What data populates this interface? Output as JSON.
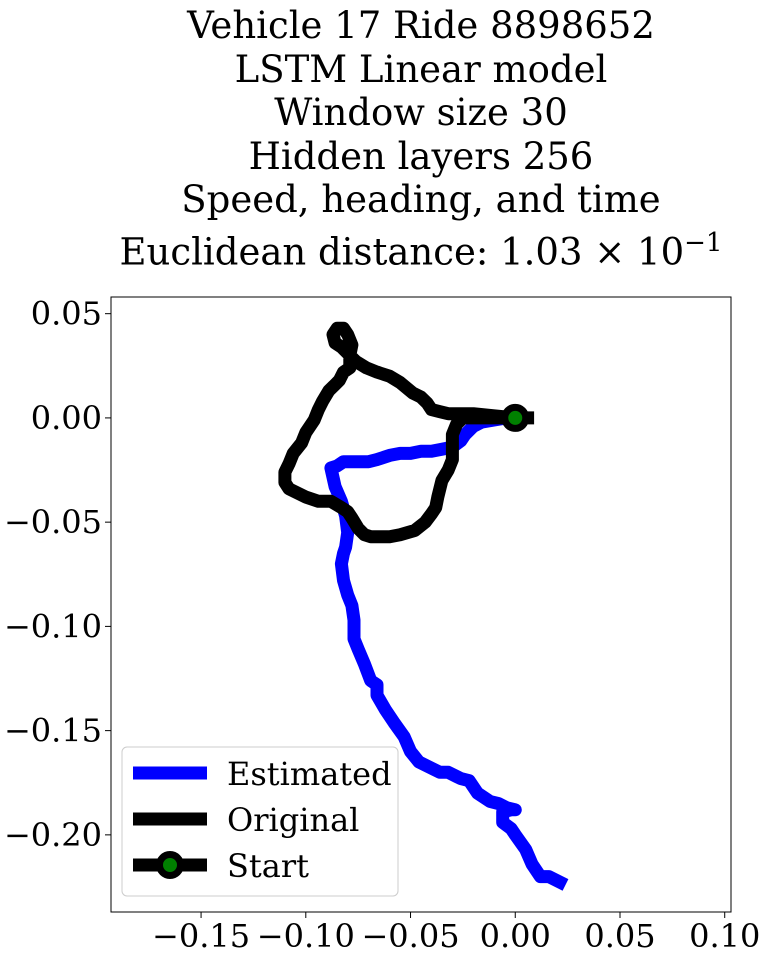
{
  "title_lines": [
    "Vehicle 17 Ride 8898652",
    "LSTM Linear model",
    "Window size 30",
    "Hidden layers 256",
    "Speed, heading, and time"
  ],
  "title_metric_prefix": "Euclidean distance: ",
  "title_metric_mantissa": "1.03",
  "title_metric_base": "10",
  "title_metric_exponent": "−1",
  "chart_data": {
    "type": "line",
    "xlim": [
      -0.193,
      0.103
    ],
    "ylim": [
      -0.237,
      0.058
    ],
    "x_ticks": [
      -0.15,
      -0.1,
      -0.05,
      0.0,
      0.05,
      0.1
    ],
    "x_tick_labels": [
      "−0.15",
      "−0.10",
      "−0.05",
      "0.00",
      "0.05",
      "0.10"
    ],
    "y_ticks": [
      0.05,
      0.0,
      -0.05,
      -0.1,
      -0.15,
      -0.2
    ],
    "y_tick_labels": [
      "0.05",
      "0.00",
      "−0.05",
      "−0.10",
      "−0.15",
      "−0.20"
    ],
    "grid": false,
    "legend_position": "lower-left",
    "series": [
      {
        "name": "Estimated",
        "color": "#0000ff",
        "x": [
          0.024,
          0.016,
          0.012,
          0.008,
          0.005,
          0.0,
          -0.002,
          -0.006,
          -0.006,
          -0.002,
          0.0,
          -0.004,
          -0.008,
          -0.012,
          -0.018,
          -0.022,
          -0.026,
          -0.028,
          -0.032,
          -0.036,
          -0.04,
          -0.046,
          -0.05,
          -0.053,
          -0.058,
          -0.062,
          -0.066,
          -0.066,
          -0.069,
          -0.072,
          -0.075,
          -0.077,
          -0.077,
          -0.078,
          -0.08,
          -0.082,
          -0.083,
          -0.082,
          -0.081,
          -0.08,
          -0.081,
          -0.083,
          -0.086,
          -0.088,
          -0.085,
          -0.082,
          -0.078,
          -0.074,
          -0.07,
          -0.066,
          -0.06,
          -0.055,
          -0.05,
          -0.045,
          -0.04,
          -0.035,
          -0.03,
          -0.026,
          -0.024,
          -0.02,
          -0.016,
          -0.01,
          -0.004,
          0.0
        ],
        "y": [
          -0.224,
          -0.22,
          -0.22,
          -0.214,
          -0.207,
          -0.2,
          -0.197,
          -0.194,
          -0.189,
          -0.188,
          -0.188,
          -0.187,
          -0.185,
          -0.184,
          -0.18,
          -0.174,
          -0.173,
          -0.172,
          -0.17,
          -0.17,
          -0.168,
          -0.165,
          -0.16,
          -0.153,
          -0.146,
          -0.14,
          -0.133,
          -0.128,
          -0.126,
          -0.118,
          -0.111,
          -0.106,
          -0.097,
          -0.09,
          -0.085,
          -0.078,
          -0.07,
          -0.065,
          -0.062,
          -0.055,
          -0.047,
          -0.04,
          -0.033,
          -0.024,
          -0.023,
          -0.021,
          -0.021,
          -0.021,
          -0.021,
          -0.02,
          -0.018,
          -0.017,
          -0.017,
          -0.016,
          -0.016,
          -0.015,
          -0.014,
          -0.011,
          -0.008,
          -0.004,
          -0.002,
          -0.001,
          0.0,
          0.0
        ]
      },
      {
        "name": "Original",
        "color": "#000000",
        "x": [
          0.009,
          0.004,
          0.0,
          -0.006,
          -0.013,
          -0.02,
          -0.025,
          -0.028,
          -0.03,
          -0.03,
          -0.03,
          -0.032,
          -0.035,
          -0.037,
          -0.038,
          -0.04,
          -0.043,
          -0.048,
          -0.055,
          -0.06,
          -0.065,
          -0.069,
          -0.072,
          -0.075,
          -0.078,
          -0.08,
          -0.083,
          -0.088,
          -0.094,
          -0.1,
          -0.108,
          -0.11,
          -0.11,
          -0.108,
          -0.106,
          -0.102,
          -0.1,
          -0.096,
          -0.094,
          -0.092,
          -0.089,
          -0.086,
          -0.084,
          -0.082,
          -0.079,
          -0.079,
          -0.078,
          -0.08,
          -0.082,
          -0.085,
          -0.087,
          -0.086,
          -0.083,
          -0.08,
          -0.076,
          -0.071,
          -0.066,
          -0.06,
          -0.055,
          -0.049,
          -0.045,
          -0.042,
          -0.04,
          -0.036,
          -0.032,
          -0.028,
          -0.02,
          -0.01,
          0.0
        ],
        "y": [
          0.0,
          0.0,
          0.0,
          0.0,
          0.0,
          0.0,
          0.0,
          -0.003,
          -0.008,
          -0.014,
          -0.02,
          -0.025,
          -0.03,
          -0.038,
          -0.043,
          -0.046,
          -0.05,
          -0.054,
          -0.056,
          -0.057,
          -0.057,
          -0.057,
          -0.056,
          -0.053,
          -0.048,
          -0.045,
          -0.043,
          -0.04,
          -0.04,
          -0.038,
          -0.034,
          -0.031,
          -0.026,
          -0.022,
          -0.017,
          -0.012,
          -0.007,
          -0.001,
          0.004,
          0.008,
          0.013,
          0.016,
          0.018,
          0.022,
          0.024,
          0.03,
          0.035,
          0.04,
          0.043,
          0.043,
          0.04,
          0.036,
          0.034,
          0.031,
          0.027,
          0.024,
          0.022,
          0.02,
          0.017,
          0.012,
          0.01,
          0.007,
          0.004,
          0.003,
          0.002,
          0.002,
          0.002,
          0.001,
          0.0
        ]
      }
    ],
    "start_point": {
      "name": "Start",
      "x": 0.0,
      "y": 0.0,
      "marker_color": "#008000",
      "edge_color": "#000000"
    },
    "legend_entries": [
      "Estimated",
      "Original",
      "Start"
    ]
  }
}
